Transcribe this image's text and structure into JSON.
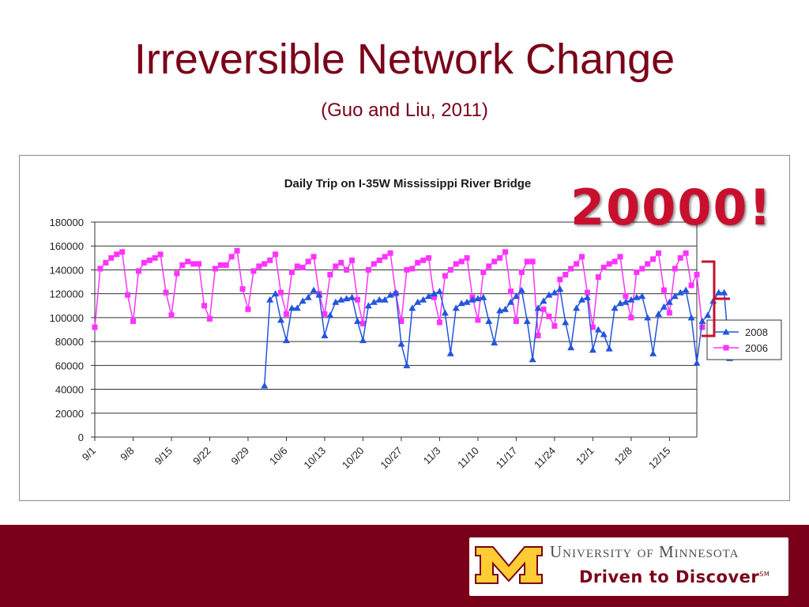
{
  "slide": {
    "title": "Irreversible Network Change",
    "subtitle": "(Guo and Liu, 2011)",
    "callout": "20000!"
  },
  "footer": {
    "university": "University of Minnesota",
    "tagline": "Driven to Discover",
    "tagline_mark": "SM"
  },
  "colors": {
    "brand_maroon": "#7a0019",
    "brand_gold": "#ffcc33",
    "callout_red": "#c8102e",
    "series_2008": "#2255dd",
    "series_2006": "#ff33ff"
  },
  "chart_data": {
    "type": "line",
    "title": "Daily Trip on I-35W Mississippi River Bridge",
    "xlabel": "",
    "ylabel": "",
    "ylim": [
      0,
      180000
    ],
    "yticks": [
      0,
      20000,
      40000,
      60000,
      80000,
      100000,
      120000,
      140000,
      160000,
      180000
    ],
    "x_start": "9/1",
    "x_tick_labels": [
      "9/1",
      "9/8",
      "9/15",
      "9/22",
      "9/29",
      "10/6",
      "10/13",
      "10/20",
      "10/27",
      "11/3",
      "11/10",
      "11/17",
      "11/24",
      "12/1",
      "12/8",
      "12/15"
    ],
    "x_days": 111,
    "grid": "horizontal",
    "legend_position": "right",
    "legend_markers": {
      "2008": "triangle",
      "2006": "square"
    },
    "series": [
      {
        "name": "2008",
        "start_index": 31,
        "values": [
          43000,
          115000,
          120000,
          98000,
          81000,
          108000,
          108000,
          114000,
          117000,
          123000,
          119000,
          85000,
          102000,
          113000,
          115000,
          116000,
          117000,
          97000,
          81000,
          110000,
          113000,
          115000,
          115000,
          119000,
          121000,
          78000,
          60000,
          108000,
          113000,
          115000,
          118000,
          120000,
          122000,
          104000,
          70000,
          108000,
          112000,
          113000,
          115000,
          116000,
          117000,
          97000,
          79000,
          106000,
          107000,
          113000,
          118000,
          123000,
          97000,
          65000,
          108000,
          114000,
          119000,
          121000,
          124000,
          96000,
          75000,
          108000,
          115000,
          117000,
          73000,
          90000,
          86000,
          74000,
          108000,
          112000,
          113000,
          115000,
          117000,
          118000,
          100000,
          70000,
          103000,
          109000,
          113000,
          118000,
          121000,
          123000,
          100000,
          62000,
          97000,
          102000,
          114000,
          121000,
          121000,
          66000
        ]
      },
      {
        "name": "2006",
        "start_index": 0,
        "values": [
          92000,
          141000,
          146000,
          150000,
          153000,
          155000,
          119000,
          97000,
          139000,
          146000,
          148000,
          150000,
          153000,
          121000,
          102000,
          137000,
          144000,
          147000,
          145000,
          145000,
          110000,
          99000,
          141000,
          144000,
          144000,
          151000,
          156000,
          124000,
          107000,
          139000,
          143000,
          145000,
          148000,
          153000,
          121000,
          103000,
          138000,
          143000,
          142000,
          147000,
          151000,
          120000,
          103000,
          136000,
          143000,
          146000,
          140000,
          148000,
          115000,
          95000,
          140000,
          145000,
          148000,
          151000,
          154000,
          120000,
          97000,
          140000,
          141000,
          146000,
          148000,
          150000,
          117000,
          96000,
          135000,
          140000,
          145000,
          147000,
          150000,
          117000,
          98000,
          138000,
          143000,
          147000,
          150000,
          155000,
          122000,
          97000,
          138000,
          147000,
          147000,
          85000,
          107000,
          101000,
          93000,
          132000,
          136000,
          141000,
          145000,
          151000,
          121000,
          92000,
          134000,
          142000,
          145000,
          147000,
          151000,
          118000,
          100000,
          138000,
          141000,
          145000,
          149000,
          154000,
          123000,
          104000,
          141000,
          150000,
          154000,
          127000,
          136000,
          92000
        ]
      }
    ]
  }
}
